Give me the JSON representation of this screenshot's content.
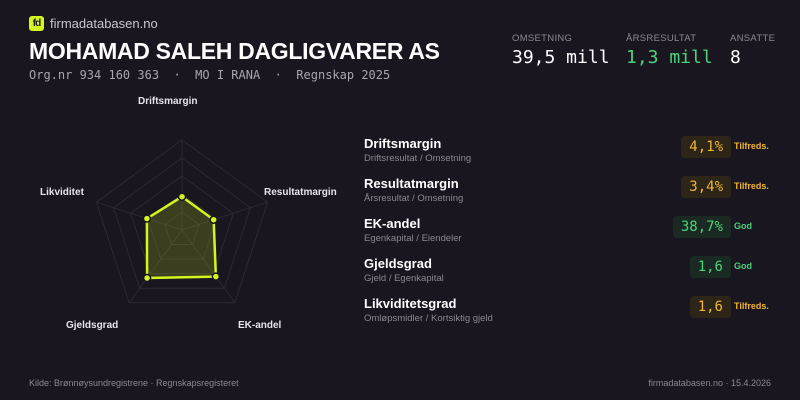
{
  "brand": {
    "logo_text": "fd",
    "site": "firmadatabasen.no",
    "accent": "#d4f51e"
  },
  "company": {
    "name": "MOHAMAD SALEH DAGLIGVARER  AS",
    "subtitle": "Org.nr 934 160 363  ·  MO I RANA  ·  Regnskap 2025"
  },
  "stats": [
    {
      "label": "OMSETNING",
      "value": "39,5 mill",
      "color": "#ffffff"
    },
    {
      "label": "ÅRSRESULTAT",
      "value": "1,3 mill",
      "color": "#4ad37a"
    },
    {
      "label": "ANSATTE",
      "value": "8",
      "color": "#ffffff"
    }
  ],
  "radar": {
    "axes": [
      "Driftsmargin",
      "Resultatmargin",
      "EK-andel",
      "Gjeldsgrad",
      "Likviditet"
    ],
    "scores": [
      0.37,
      0.37,
      0.64,
      0.66,
      0.41
    ],
    "rings": 5
  },
  "metrics": [
    {
      "name": "Driftsmargin",
      "formula": "Driftsresultat / Omsetning",
      "value": "4,1%",
      "status": "Tilfreds.",
      "tone": "warn"
    },
    {
      "name": "Resultatmargin",
      "formula": "Årsresultat / Omsetning",
      "value": "3,4%",
      "status": "Tilfreds.",
      "tone": "warn"
    },
    {
      "name": "EK-andel",
      "formula": "Egenkapital / Eiendeler",
      "value": "38,7%",
      "status": "God",
      "tone": "good"
    },
    {
      "name": "Gjeldsgrad",
      "formula": "Gjeld / Egenkapital",
      "value": "1,6",
      "status": "God",
      "tone": "good"
    },
    {
      "name": "Likviditetsgrad",
      "formula": "Omløpsmidler / Kortsiktig gjeld",
      "value": "1,6",
      "status": "Tilfreds.",
      "tone": "warn"
    }
  ],
  "tones": {
    "warn": {
      "fg": "#f2b531",
      "bg": "#2e2519"
    },
    "good": {
      "fg": "#4ad37a",
      "bg": "#1a2a22"
    }
  },
  "footer": {
    "source": "Kilde: Brønnøysundregistrene · Regnskapsregisteret",
    "right": "firmadatabasen.no · 15.4.2026"
  }
}
